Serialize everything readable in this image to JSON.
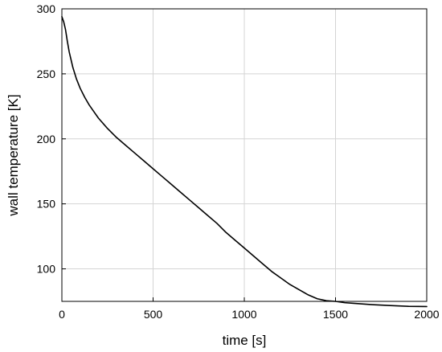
{
  "chart_data": {
    "type": "line",
    "title": "",
    "xlabel": "time [s]",
    "ylabel": "wall temperature [K]",
    "xlim": [
      0,
      2000
    ],
    "ylim": [
      75,
      300
    ],
    "x_ticks": [
      0,
      500,
      1000,
      1500,
      2000
    ],
    "y_ticks": [
      100,
      150,
      200,
      250,
      300
    ],
    "x_tick_labels": [
      "0",
      "500",
      "1000",
      "1500",
      "2000"
    ],
    "y_tick_labels": [
      "100",
      "150",
      "200",
      "250",
      "300"
    ],
    "grid": true,
    "legend": "none",
    "colors": {
      "line": "#000000",
      "grid": "#d4d4d4",
      "axes": "#000000"
    },
    "series": [
      {
        "x": [
          0,
          10,
          20,
          30,
          40,
          50,
          60,
          80,
          100,
          125,
          150,
          175,
          200,
          250,
          300,
          350,
          400,
          450,
          500,
          550,
          600,
          650,
          700,
          750,
          800,
          850,
          900,
          950,
          1000,
          1050,
          1100,
          1150,
          1200,
          1250,
          1300,
          1350,
          1400,
          1450,
          1500,
          1550,
          1600,
          1700,
          1800,
          1900,
          2000
        ],
        "y": [
          294,
          290,
          284,
          275,
          267,
          261,
          255,
          246,
          239,
          232,
          226,
          221,
          216,
          208,
          201,
          195,
          189,
          183,
          177,
          171,
          165,
          159,
          153,
          147,
          141,
          135,
          128,
          122,
          116,
          110,
          104,
          98,
          93,
          88,
          84,
          80,
          77,
          75.5,
          75,
          74,
          73.5,
          72.5,
          71.8,
          71.2,
          71
        ]
      }
    ]
  }
}
